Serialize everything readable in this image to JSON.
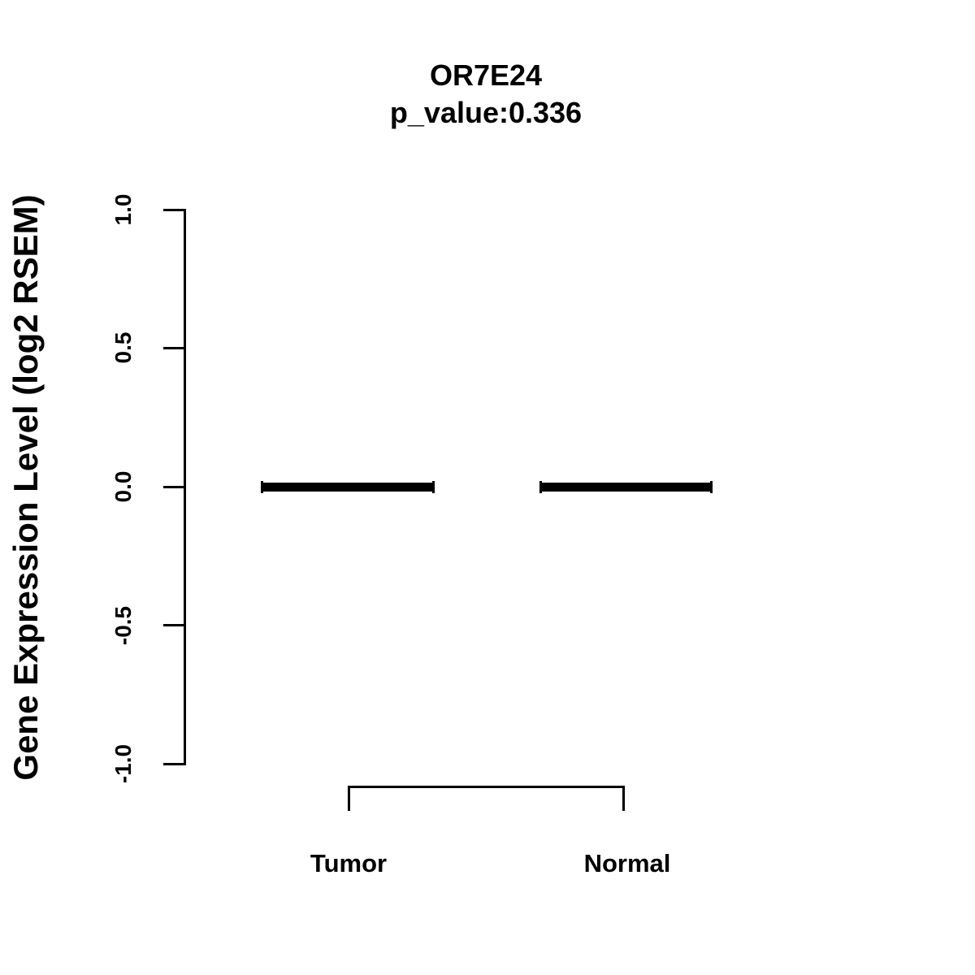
{
  "figure": {
    "background_color": "#ffffff",
    "foreground_color": "#000000"
  },
  "chart_data": {
    "type": "boxplot",
    "title": "OR7E24",
    "subtitle": "p_value:0.336",
    "p_value": 0.336,
    "xlabel": "",
    "ylabel": "Gene Expression Level (log2 RSEM)",
    "categories": [
      "Tumor",
      "Normal"
    ],
    "groups": [
      {
        "name": "Tumor",
        "median": 0.0,
        "q1": 0.0,
        "q3": 0.0,
        "whisker_low": 0.0,
        "whisker_high": 0.0
      },
      {
        "name": "Normal",
        "median": 0.0,
        "q1": 0.0,
        "q3": 0.0,
        "whisker_low": 0.0,
        "whisker_high": 0.0
      }
    ],
    "ylim": [
      -1.0,
      1.0
    ],
    "yticks": [
      -1.0,
      -0.5,
      0.0,
      0.5,
      1.0
    ],
    "ytick_labels": [
      "-1.0",
      "-0.5",
      "0.0",
      "0.5",
      "1.0"
    ],
    "grid": false,
    "legend_position": "none",
    "annotations": [
      {
        "type": "comparison-bracket",
        "from": "Tumor",
        "to": "Normal"
      }
    ]
  }
}
